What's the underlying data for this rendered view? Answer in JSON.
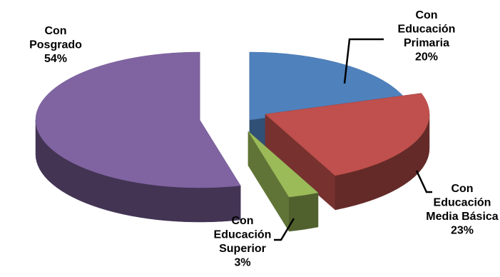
{
  "chart_data": {
    "type": "pie",
    "style": "3d-exploded",
    "legend": "none",
    "slices": [
      {
        "label_lines": [
          "Con",
          "Educación",
          "Primaria"
        ],
        "value_label": "20%",
        "value": 20,
        "color": "#4F81BD"
      },
      {
        "label_lines": [
          "Con",
          "Educación",
          "Media  Básica"
        ],
        "value_label": "23%",
        "value": 23,
        "color": "#C0504D"
      },
      {
        "label_lines": [
          "Con",
          "Educación",
          "Superior"
        ],
        "value_label": "3%",
        "value": 3,
        "color": "#9BBB59"
      },
      {
        "label_lines": [
          "Con",
          "Posgrado"
        ],
        "value_label": "54%",
        "value": 54,
        "color": "#8064A2"
      }
    ]
  }
}
